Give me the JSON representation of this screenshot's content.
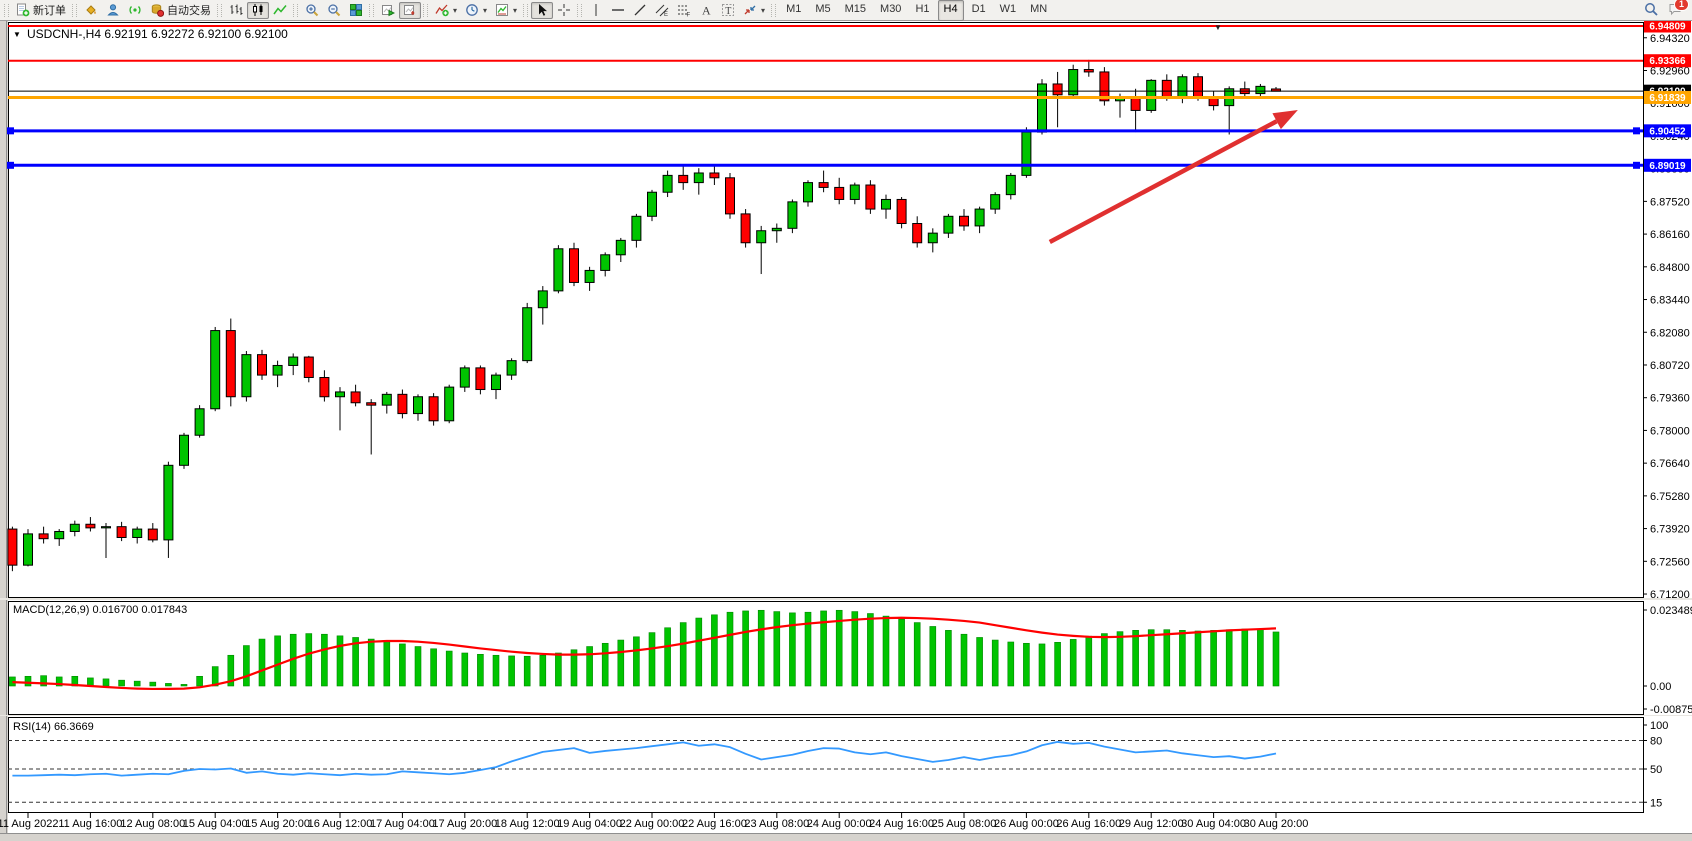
{
  "app": {
    "background": "#ffffff",
    "chrome_gray": "#d6d3ce"
  },
  "toolbar": {
    "groups": [
      {
        "items": [
          {
            "name": "new-order-button",
            "icon": "new-order",
            "label": "新订单"
          }
        ]
      },
      {
        "items": [
          {
            "name": "styles-button",
            "icon": "paint-bucket"
          },
          {
            "name": "community-button",
            "icon": "community"
          },
          {
            "name": "signals-button",
            "icon": "signals"
          },
          {
            "name": "auto-trading-button",
            "icon": "autotrade",
            "label": "自动交易"
          }
        ]
      },
      {
        "items": [
          {
            "name": "bar-chart-button",
            "icon": "bar-chart"
          },
          {
            "name": "candle-chart-button",
            "icon": "candle-chart",
            "pressed": true
          },
          {
            "name": "line-chart-button",
            "icon": "line-chart"
          }
        ]
      },
      {
        "items": [
          {
            "name": "zoom-in-button",
            "icon": "zoom-in"
          },
          {
            "name": "zoom-out-button",
            "icon": "zoom-out"
          },
          {
            "name": "tile-windows-button",
            "icon": "tile-windows"
          }
        ]
      },
      {
        "items": [
          {
            "name": "auto-scroll-button",
            "icon": "auto-scroll"
          },
          {
            "name": "chart-shift-button",
            "icon": "chart-shift",
            "pressed": true
          }
        ]
      },
      {
        "items": [
          {
            "name": "indicators-button",
            "icon": "indicators",
            "dropdown": true
          },
          {
            "name": "periods-button",
            "icon": "periods",
            "dropdown": true
          },
          {
            "name": "templates-button",
            "icon": "templates",
            "dropdown": true
          }
        ]
      },
      {
        "items": [
          {
            "name": "cursor-button",
            "icon": "cursor",
            "pressed": true
          },
          {
            "name": "crosshair-button",
            "icon": "crosshair"
          }
        ]
      },
      {
        "items": [
          {
            "name": "vertical-line-button",
            "icon": "vertical-line"
          },
          {
            "name": "horizontal-line-button",
            "icon": "horizontal-line"
          },
          {
            "name": "trendline-button",
            "icon": "trendline"
          },
          {
            "name": "equidistant-channel-button",
            "icon": "equidistant-channel"
          },
          {
            "name": "fibonacci-button",
            "icon": "fibonacci"
          },
          {
            "name": "text-button",
            "icon": "text"
          },
          {
            "name": "text-label-button",
            "icon": "text-label"
          },
          {
            "name": "arrows-button",
            "icon": "arrows",
            "dropdown": true
          }
        ]
      }
    ],
    "timeframes": [
      "M1",
      "M5",
      "M15",
      "M30",
      "H1",
      "H4",
      "D1",
      "W1",
      "MN"
    ],
    "active_timeframe": "H4",
    "notification_badge": "1"
  },
  "chart_data": {
    "type": "candlestick",
    "symbol": "USDCNH-",
    "timeframe": "H4",
    "title": "USDCNH-,H4",
    "ohlc": {
      "open": "6.92191",
      "high": "6.92272",
      "low": "6.92100",
      "close": "6.92100"
    },
    "ohlc_display": "6.92191 6.92272 6.92100 6.92100",
    "bull_color": "#00C400",
    "bear_color": "#FF0000",
    "wick_color": "#000000",
    "price_ticks": [
      "6.94320",
      "6.92960",
      "6.91600",
      "6.90240",
      "6.88880",
      "6.87520",
      "6.86160",
      "6.84800",
      "6.83440",
      "6.82080",
      "6.80720",
      "6.79360",
      "6.78000",
      "6.76640",
      "6.75280",
      "6.73920",
      "6.72560",
      "6.71200"
    ],
    "time_labels": [
      "11 Aug 2022",
      "11 Aug 16:00",
      "12 Aug 08:00",
      "15 Aug 04:00",
      "15 Aug 20:00",
      "16 Aug 12:00",
      "17 Aug 04:00",
      "17 Aug 20:00",
      "18 Aug 12:00",
      "19 Aug 04:00",
      "22 Aug 00:00",
      "22 Aug 16:00",
      "23 Aug 08:00",
      "24 Aug 00:00",
      "24 Aug 16:00",
      "25 Aug 08:00",
      "26 Aug 00:00",
      "26 Aug 16:00",
      "29 Aug 12:00",
      "30 Aug 04:00",
      "30 Aug 20:00"
    ],
    "candles": [
      [
        6.739,
        6.74,
        6.7215,
        6.724
      ],
      [
        6.724,
        6.739,
        6.7235,
        6.737
      ],
      [
        6.737,
        6.74,
        6.733,
        6.735
      ],
      [
        6.735,
        6.739,
        6.732,
        6.738
      ],
      [
        6.738,
        6.7425,
        6.736,
        6.741
      ],
      [
        6.741,
        6.744,
        6.738,
        6.7395
      ],
      [
        6.7395,
        6.7415,
        6.727,
        6.74
      ],
      [
        6.74,
        6.742,
        6.734,
        6.7355
      ],
      [
        6.7355,
        6.74,
        6.733,
        6.739
      ],
      [
        6.739,
        6.7415,
        6.7335,
        6.7345
      ],
      [
        6.7345,
        6.767,
        6.727,
        6.7655
      ],
      [
        6.7655,
        6.779,
        6.764,
        6.778
      ],
      [
        6.778,
        6.7905,
        6.777,
        6.789
      ],
      [
        6.789,
        6.823,
        6.788,
        6.8215
      ],
      [
        6.8215,
        6.8265,
        6.79,
        6.794
      ],
      [
        6.794,
        6.813,
        6.792,
        6.8115
      ],
      [
        6.8115,
        6.8135,
        6.801,
        6.803
      ],
      [
        6.803,
        6.809,
        6.798,
        6.807
      ],
      [
        6.807,
        6.812,
        6.803,
        6.8105
      ],
      [
        6.8105,
        6.811,
        6.8,
        6.802
      ],
      [
        6.802,
        6.805,
        6.792,
        6.794
      ],
      [
        6.794,
        6.798,
        6.78,
        6.796
      ],
      [
        6.796,
        6.799,
        6.79,
        6.7915
      ],
      [
        6.7915,
        6.793,
        6.77,
        6.7905
      ],
      [
        6.7905,
        6.796,
        6.787,
        6.795
      ],
      [
        6.795,
        6.797,
        6.785,
        6.787
      ],
      [
        6.787,
        6.795,
        6.784,
        6.794
      ],
      [
        6.794,
        6.7955,
        6.782,
        6.784
      ],
      [
        6.784,
        6.799,
        6.783,
        6.798
      ],
      [
        6.798,
        6.807,
        6.796,
        6.806
      ],
      [
        6.806,
        6.807,
        6.795,
        6.797
      ],
      [
        6.797,
        6.804,
        6.793,
        6.803
      ],
      [
        6.803,
        6.81,
        6.801,
        6.809
      ],
      [
        6.809,
        6.833,
        6.808,
        6.831
      ],
      [
        6.831,
        6.84,
        6.824,
        6.838
      ],
      [
        6.838,
        6.857,
        6.837,
        6.8555
      ],
      [
        6.8555,
        6.858,
        6.84,
        6.8415
      ],
      [
        6.8415,
        6.848,
        6.838,
        6.8465
      ],
      [
        6.8465,
        6.854,
        6.844,
        6.853
      ],
      [
        6.853,
        6.86,
        6.85,
        6.859
      ],
      [
        6.859,
        6.87,
        6.856,
        6.869
      ],
      [
        6.869,
        6.88,
        6.867,
        6.879
      ],
      [
        6.879,
        6.888,
        6.877,
        6.886
      ],
      [
        6.886,
        6.89,
        6.88,
        6.883
      ],
      [
        6.883,
        6.889,
        6.878,
        6.887
      ],
      [
        6.887,
        6.89,
        6.882,
        6.885
      ],
      [
        6.885,
        6.887,
        6.868,
        6.87
      ],
      [
        6.87,
        6.872,
        6.856,
        6.858
      ],
      [
        6.858,
        6.865,
        6.845,
        6.863
      ],
      [
        6.863,
        6.866,
        6.858,
        6.864
      ],
      [
        6.864,
        6.876,
        6.862,
        6.875
      ],
      [
        6.875,
        6.884,
        6.873,
        6.883
      ],
      [
        6.883,
        6.888,
        6.879,
        6.881
      ],
      [
        6.881,
        6.885,
        6.874,
        6.876
      ],
      [
        6.876,
        6.883,
        6.874,
        6.882
      ],
      [
        6.882,
        6.884,
        6.87,
        6.872
      ],
      [
        6.872,
        6.878,
        6.868,
        6.876
      ],
      [
        6.876,
        6.877,
        6.864,
        6.866
      ],
      [
        6.866,
        6.869,
        6.856,
        6.858
      ],
      [
        6.858,
        6.864,
        6.854,
        6.862
      ],
      [
        6.862,
        6.87,
        6.86,
        6.869
      ],
      [
        6.869,
        6.872,
        6.863,
        6.865
      ],
      [
        6.865,
        6.873,
        6.862,
        6.872
      ],
      [
        6.872,
        6.879,
        6.87,
        6.878
      ],
      [
        6.878,
        6.887,
        6.876,
        6.886
      ],
      [
        6.886,
        6.906,
        6.885,
        6.904
      ],
      [
        6.904,
        6.926,
        6.903,
        6.924
      ],
      [
        6.924,
        6.929,
        6.906,
        6.9195
      ],
      [
        6.9195,
        6.932,
        6.918,
        6.93
      ],
      [
        6.93,
        6.934,
        6.927,
        6.929
      ],
      [
        6.929,
        6.931,
        6.915,
        6.917
      ],
      [
        6.917,
        6.92,
        6.91,
        6.9185
      ],
      [
        6.9185,
        6.922,
        6.904,
        6.913
      ],
      [
        6.913,
        6.926,
        6.912,
        6.9255
      ],
      [
        6.9255,
        6.928,
        6.917,
        6.918
      ],
      [
        6.918,
        6.928,
        6.916,
        6.927
      ],
      [
        6.927,
        6.9285,
        6.917,
        6.9185
      ],
      [
        6.9185,
        6.921,
        6.913,
        6.915
      ],
      [
        6.915,
        6.923,
        6.903,
        6.922
      ],
      [
        6.922,
        6.925,
        6.919,
        6.92
      ],
      [
        6.92,
        6.924,
        6.919,
        6.923
      ],
      [
        6.92191,
        6.92272,
        6.921,
        6.921
      ]
    ],
    "horizontal_lines": [
      {
        "price": 6.94809,
        "label": "6.94809",
        "color": "#FF0000",
        "width": 2,
        "handles": false
      },
      {
        "price": 6.93366,
        "label": "6.93366",
        "color": "#FF0000",
        "width": 2,
        "handles": false
      },
      {
        "price": 6.91839,
        "label": "6.91839",
        "color": "#FFA500",
        "width": 3,
        "handles": false
      },
      {
        "price": 6.90452,
        "label": "6.90452",
        "color": "#0000FF",
        "width": 3,
        "handles": true
      },
      {
        "price": 6.89019,
        "label": "6.89019",
        "color": "#0000FF",
        "width": 3,
        "handles": true
      }
    ],
    "current_price": {
      "value": 6.921,
      "label": "6.92100",
      "color": "#000000"
    },
    "trend_arrow": {
      "from_bar": 66.5,
      "from_price": 6.8583,
      "to_bar": 82.4,
      "to_price": 6.9132,
      "color": "#E03030"
    },
    "macd": {
      "label": "MACD(12,26,9)",
      "main_value": "0.016700",
      "signal_value": "0.017843",
      "axis_ticks": [
        "0.023489",
        "0.00",
        "-0.008754"
      ],
      "hist_color": "#00C400",
      "signal_color": "#FF0000",
      "histogram": [
        0.0028,
        0.003,
        0.0032,
        0.0028,
        0.003,
        0.0025,
        0.0022,
        0.0018,
        0.0015,
        0.0012,
        0.0008,
        0.0005,
        0.003,
        0.006,
        0.0095,
        0.0125,
        0.0145,
        0.0155,
        0.016,
        0.0162,
        0.016,
        0.0155,
        0.015,
        0.0145,
        0.0138,
        0.013,
        0.0122,
        0.0115,
        0.0108,
        0.0102,
        0.0098,
        0.0095,
        0.0093,
        0.0092,
        0.0095,
        0.0102,
        0.0112,
        0.0122,
        0.0132,
        0.0142,
        0.0152,
        0.0165,
        0.018,
        0.0196,
        0.021,
        0.022,
        0.0228,
        0.0232,
        0.0234,
        0.023,
        0.0226,
        0.0228,
        0.0232,
        0.0234,
        0.023,
        0.0224,
        0.0216,
        0.0206,
        0.0196,
        0.0184,
        0.0172,
        0.016,
        0.015,
        0.0142,
        0.0136,
        0.0132,
        0.013,
        0.0135,
        0.0144,
        0.0154,
        0.0162,
        0.0168,
        0.0172,
        0.0174,
        0.0174,
        0.0172,
        0.017,
        0.0172,
        0.0174,
        0.0176,
        0.0174,
        0.0167
      ],
      "signal": [
        0.0012,
        0.001,
        0.0008,
        0.0006,
        0.0003,
        0.0,
        -0.0003,
        -0.0006,
        -0.0008,
        -0.0009,
        -0.0009,
        -0.0008,
        -0.0004,
        0.0004,
        0.0015,
        0.003,
        0.0048,
        0.0066,
        0.0084,
        0.01,
        0.0113,
        0.0124,
        0.0132,
        0.0137,
        0.0139,
        0.0139,
        0.0137,
        0.0133,
        0.0128,
        0.0122,
        0.0116,
        0.0111,
        0.0106,
        0.0102,
        0.0099,
        0.0097,
        0.0097,
        0.0098,
        0.0101,
        0.0105,
        0.011,
        0.0116,
        0.0123,
        0.0131,
        0.014,
        0.0149,
        0.0158,
        0.0167,
        0.0175,
        0.0182,
        0.0188,
        0.0193,
        0.0197,
        0.0201,
        0.0205,
        0.0208,
        0.021,
        0.0211,
        0.021,
        0.0208,
        0.0205,
        0.0201,
        0.0196,
        0.0188,
        0.018,
        0.0172,
        0.0165,
        0.0159,
        0.0155,
        0.0152,
        0.0151,
        0.0152,
        0.0154,
        0.0157,
        0.016,
        0.0163,
        0.0166,
        0.0169,
        0.0172,
        0.0174,
        0.0176,
        0.0178
      ]
    },
    "rsi": {
      "label": "RSI(14)",
      "value": "66.3669",
      "color": "#3399FF",
      "axis_ticks": [
        "100",
        "80",
        "50",
        "15"
      ],
      "levels_dashed": [
        80,
        50,
        15
      ],
      "series": [
        43,
        43,
        43.5,
        44,
        43.5,
        44.5,
        45,
        43,
        44,
        45,
        44.5,
        48,
        50,
        49.5,
        50.5,
        46,
        47.5,
        45,
        44,
        45.5,
        44.5,
        43.5,
        45,
        44,
        44.5,
        47.5,
        46.5,
        45.5,
        44.5,
        46,
        49,
        52,
        58,
        63,
        68,
        70,
        72,
        67,
        69,
        70.5,
        72,
        74,
        76,
        78,
        74.5,
        76,
        73,
        66,
        60,
        62.5,
        65,
        69,
        72,
        71.5,
        67.5,
        65.5,
        67.5,
        63.5,
        60.5,
        57.5,
        59.5,
        62.5,
        59.5,
        62.5,
        64.5,
        68.5,
        75,
        78.5,
        76.5,
        77.5,
        73.5,
        70.5,
        67.5,
        68.5,
        69.5,
        66.5,
        64.5,
        62.5,
        63.5,
        61,
        63,
        66.37
      ]
    }
  }
}
